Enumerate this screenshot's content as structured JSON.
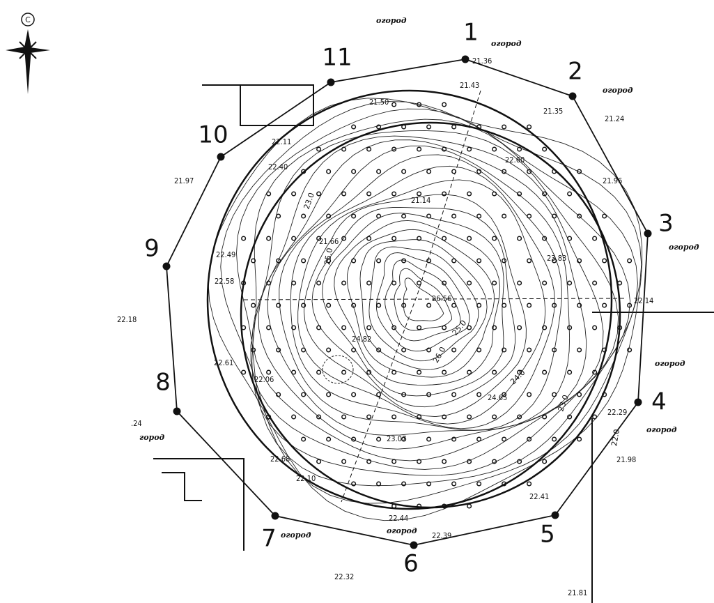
{
  "compass": "С",
  "points": [
    {
      "label": "1"
    },
    {
      "label": "2"
    },
    {
      "label": "3"
    },
    {
      "label": "4"
    },
    {
      "label": "5"
    },
    {
      "label": "6"
    },
    {
      "label": "7"
    },
    {
      "label": "8"
    },
    {
      "label": "9"
    },
    {
      "label": "10"
    },
    {
      "label": "11"
    }
  ],
  "elevations": [
    "21.36",
    "21.43",
    "21.50",
    "21.35",
    "21.24",
    "22.11",
    "22.60",
    "22.40",
    "21.97",
    "21.96",
    "21.14",
    "21.66",
    "23.83",
    "22.49",
    "22.58",
    "26.56",
    "22.14",
    "22.18",
    "24.82",
    "22.61",
    "22.06",
    "24.65",
    "22.29",
    "21.98",
    "23.07",
    "22.68",
    "22.10",
    "22.41",
    "22.44",
    "22.39",
    "22.32",
    "21.81",
    ".24"
  ],
  "area_labels": [
    "огород",
    "огород",
    "огород",
    "огород",
    "огород",
    "огород",
    "огород",
    "огород",
    "город"
  ],
  "contour_labels": [
    "23.0",
    "25.0",
    "26.0",
    "25.0",
    "24.0",
    "23.0",
    "22.0"
  ]
}
